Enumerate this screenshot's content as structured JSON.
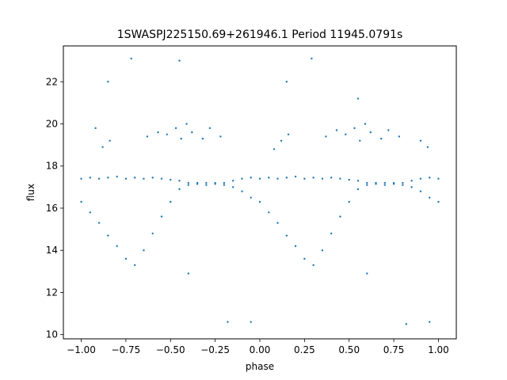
{
  "chart_data": {
    "type": "scatter",
    "title": "1SWASPJ225150.69+261946.1 Period 11945.0791s",
    "xlabel": "phase",
    "ylabel": "flux",
    "xlim": [
      -1.1,
      1.1
    ],
    "ylim": [
      9.8,
      23.7
    ],
    "x_ticks": [
      -1.0,
      -0.75,
      -0.5,
      -0.25,
      0.0,
      0.25,
      0.5,
      0.75,
      1.0
    ],
    "x_tick_labels": [
      "−1.00",
      "−0.75",
      "−0.50",
      "−0.25",
      "0.00",
      "0.25",
      "0.50",
      "0.75",
      "1.00"
    ],
    "y_ticks": [
      10,
      12,
      14,
      16,
      18,
      20,
      22
    ],
    "y_tick_labels": [
      "10",
      "12",
      "14",
      "16",
      "18",
      "20",
      "22"
    ],
    "grid": false,
    "marker_color": "#1f77b4",
    "series": [
      {
        "x": [
          -1.0,
          -0.95,
          -0.9,
          -0.85,
          -0.8,
          -0.75,
          -0.7,
          -0.65,
          -0.6,
          -0.55,
          -0.5,
          -0.45,
          -0.4,
          -0.35,
          -0.3,
          -0.25,
          -0.2,
          -0.15,
          -0.1,
          -0.05,
          0.0,
          0.05,
          0.1,
          0.15,
          0.2,
          0.25,
          0.3,
          0.35,
          0.4,
          0.45,
          0.5,
          0.55,
          0.6,
          0.65,
          0.7,
          0.75,
          0.8,
          0.85,
          0.9,
          0.95,
          1.0
        ],
        "y": [
          17.4,
          17.45,
          17.4,
          17.45,
          17.5,
          17.4,
          17.45,
          17.4,
          17.45,
          17.4,
          17.35,
          17.3,
          17.2,
          17.15,
          17.1,
          17.15,
          17.2,
          17.3,
          17.4,
          17.45,
          17.4,
          17.45,
          17.4,
          17.45,
          17.5,
          17.4,
          17.45,
          17.4,
          17.45,
          17.4,
          17.35,
          17.3,
          17.2,
          17.15,
          17.1,
          17.15,
          17.2,
          17.3,
          17.4,
          17.45,
          17.4
        ]
      },
      {
        "x": [
          -1.0,
          -0.95,
          -0.9,
          -0.85,
          -0.8,
          -0.75,
          -0.7,
          -0.65,
          -0.6,
          -0.55,
          -0.5,
          -0.45,
          -0.4,
          -0.35,
          -0.3,
          -0.25,
          -0.2,
          -0.15,
          -0.1,
          -0.05,
          0.0,
          0.05,
          0.1,
          0.15,
          0.2,
          0.25,
          0.3,
          0.35,
          0.4,
          0.45,
          0.5,
          0.55,
          0.6,
          0.65,
          0.7,
          0.75,
          0.8,
          0.85,
          0.9,
          0.95,
          1.0
        ],
        "y": [
          16.3,
          15.8,
          15.3,
          14.7,
          14.2,
          13.6,
          13.3,
          14.0,
          14.8,
          15.6,
          16.3,
          16.9,
          17.1,
          17.2,
          17.2,
          17.2,
          17.1,
          17.0,
          16.8,
          16.5,
          16.3,
          15.8,
          15.3,
          14.7,
          14.2,
          13.6,
          13.3,
          14.0,
          14.8,
          15.6,
          16.3,
          16.9,
          17.1,
          17.2,
          17.2,
          17.2,
          17.1,
          17.0,
          16.8,
          16.5,
          16.3
        ]
      },
      {
        "x": [
          -0.92,
          -0.88,
          -0.84,
          -0.63,
          -0.57,
          -0.52,
          -0.47,
          -0.44,
          -0.41,
          -0.38,
          -0.32,
          -0.28,
          -0.22,
          0.08,
          0.12,
          0.16,
          0.37,
          0.43,
          0.48,
          0.53,
          0.56,
          0.59,
          0.62,
          0.68,
          0.72,
          0.78,
          0.9,
          0.94,
          -0.72,
          0.29,
          -0.18,
          0.82,
          -0.4,
          0.6,
          -0.05,
          0.95,
          -0.85,
          0.15,
          -0.45,
          0.55
        ],
        "y": [
          19.8,
          18.9,
          19.2,
          19.4,
          19.6,
          19.5,
          19.8,
          19.3,
          20.0,
          19.6,
          19.3,
          19.8,
          19.4,
          18.8,
          19.2,
          19.5,
          19.4,
          19.7,
          19.5,
          19.8,
          19.2,
          20.0,
          19.6,
          19.3,
          19.7,
          19.4,
          19.2,
          18.9,
          23.1,
          23.1,
          10.6,
          10.5,
          12.9,
          12.9,
          10.6,
          10.6,
          22.0,
          22.0,
          23.0,
          21.2
        ]
      }
    ]
  }
}
